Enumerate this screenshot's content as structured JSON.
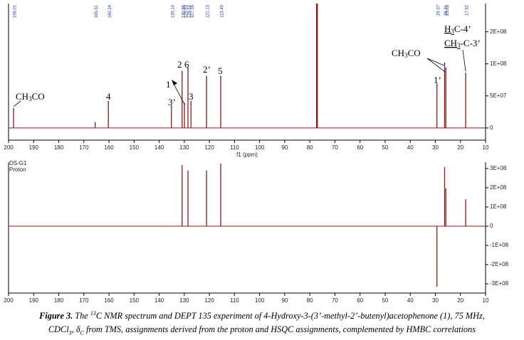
{
  "chart_data": [
    {
      "type": "spectrum",
      "color": "#8b1a1a",
      "x": [
        198.01,
        165.51,
        160.24,
        135.14,
        130.86,
        129.93,
        128.53,
        127.35,
        121.13,
        115.49,
        29.37,
        26.31,
        25.83,
        17.92
      ],
      "values": [
        31000000,
        9000000,
        42000000,
        35000000,
        89000000,
        39000000,
        94000000,
        42000000,
        81000000,
        81000000,
        69000000,
        102000000,
        94000000,
        86000000
      ],
      "solvent": {
        "x": 77.16,
        "value": 250000000
      },
      "xlim": [
        200,
        10
      ],
      "xticks": [
        200,
        190,
        180,
        170,
        160,
        150,
        140,
        130,
        120,
        110,
        100,
        90,
        80,
        70,
        60,
        50,
        40,
        30,
        20,
        10
      ],
      "xlabel": "f1 (ppm)",
      "ylim": [
        -19000000,
        194000000
      ],
      "yticks": [
        0,
        {
          "value": 50000000,
          "label": "5E+07"
        },
        {
          "value": 100000000,
          "label": "1E+08"
        },
        {
          "value": 150000000,
          "label": "2E+08"
        }
      ],
      "annotations": [
        [
          "CH",
          "3",
          "CO"
        ],
        [
          "4"
        ],
        [
          "3’"
        ],
        [
          "1"
        ],
        [
          "2"
        ],
        [
          "6"
        ],
        [
          "3"
        ],
        [
          "2’"
        ],
        [
          "5"
        ],
        [
          "1’"
        ],
        [
          "CH",
          "3",
          "CO"
        ],
        [
          "H",
          "3",
          "C-4’"
        ],
        [
          "CH",
          "3",
          "-C-3’"
        ]
      ]
    },
    {
      "type": "spectrum",
      "color": "#8b1a1a",
      "labels": [
        "DS-G1",
        "Proton"
      ],
      "x": [
        130.86,
        128.53,
        121.13,
        115.49,
        29.37,
        26.31,
        25.83,
        17.92
      ],
      "values": [
        319000000,
        290000000,
        290000000,
        326000000,
        -315000000,
        307000000,
        196000000,
        140000000
      ],
      "xlim": [
        200,
        10
      ],
      "xticks": [
        200,
        190,
        180,
        170,
        160,
        150,
        140,
        130,
        120,
        110,
        100,
        90,
        80,
        70,
        60,
        50,
        40,
        30,
        20,
        10
      ],
      "ylim": [
        -348000000,
        333000000
      ],
      "yticks": [
        {
          "value": 300000000,
          "label": "3E+08"
        },
        {
          "value": 200000000,
          "label": "2E+08"
        },
        {
          "value": 100000000,
          "label": "1E+08"
        },
        0,
        {
          "value": -100000000,
          "label": "-1E+08"
        },
        {
          "value": -200000000,
          "label": "-2E+08"
        },
        {
          "value": -300000000,
          "label": "-3E+08"
        }
      ]
    }
  ],
  "caption": {
    "parts": [
      "Figure 3.",
      " The ",
      "13",
      "C NMR spectrum and DEPT 135 experiment of 4-Hydroxy-3-(3’-methyl-2’-butenyl)acetophenone (",
      "1",
      "), 75 MHz,",
      "CDCl",
      "3",
      ", δ",
      "C",
      " from TMS, assignments derived from the proton and HSQC assignments, complemented by HMBC correlations"
    ]
  }
}
